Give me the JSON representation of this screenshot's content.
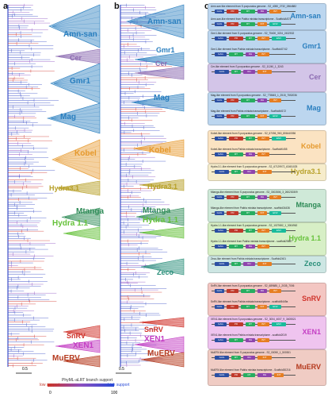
{
  "panels": {
    "a": "a",
    "b": "b",
    "c": "c"
  },
  "clades_a": [
    {
      "key": "amn",
      "label": "Amn-san",
      "color": "#2a7fbf"
    },
    {
      "key": "cer",
      "label": "Cer",
      "color": "#8c6bb1"
    },
    {
      "key": "gmr1",
      "label": "Gmr1",
      "color": "#2a7fbf"
    },
    {
      "key": "mag",
      "label": "Mag",
      "color": "#2a7fbf"
    },
    {
      "key": "kobel",
      "label": "Kobel",
      "color": "#e69a2e"
    },
    {
      "key": "hydra31",
      "label": "Hydra3.1",
      "color": "#b8a12a"
    },
    {
      "key": "mtanga",
      "label": "Mtanga",
      "color": "#2e8b57"
    },
    {
      "key": "hydra11",
      "label": "Hydra 1.1",
      "color": "#66c23a"
    },
    {
      "key": "snrv",
      "label": "SnRV",
      "color": "#d0342c"
    },
    {
      "key": "xen1",
      "label": "XEN1",
      "color": "#c43fc4"
    },
    {
      "key": "muerv",
      "label": "MuERV",
      "color": "#b5391d"
    }
  ],
  "clades_b": [
    {
      "key": "amn",
      "label": "Amn-san",
      "color": "#2a7fbf"
    },
    {
      "key": "gmr1",
      "label": "Gmr1",
      "color": "#2a7fbf"
    },
    {
      "key": "cer",
      "label": "Cer",
      "color": "#8c6bb1"
    },
    {
      "key": "mag",
      "label": "Mag",
      "color": "#2a7fbf"
    },
    {
      "key": "kobel",
      "label": "Kobel",
      "color": "#e69a2e"
    },
    {
      "key": "hydra31",
      "label": "Hydra3.1",
      "color": "#b8a12a"
    },
    {
      "key": "mtanga",
      "label": "Mtanga",
      "color": "#2e8b57"
    },
    {
      "key": "hydra11",
      "label": "Hydra 1.1",
      "color": "#66c23a"
    },
    {
      "key": "zeco",
      "label": "Zeco",
      "color": "#2a8f7a"
    },
    {
      "key": "snrv",
      "label": "SnRV",
      "color": "#d0342c"
    },
    {
      "key": "xen1",
      "label": "XEN1",
      "color": "#c43fc4"
    },
    {
      "key": "muerv",
      "label": "MuERV",
      "color": "#b5391d"
    }
  ],
  "boxes": [
    {
      "key": "amn",
      "label": "Amn-san",
      "color": "#bcd6ef",
      "label_color": "#2a7fbf",
      "lines": [
        "Amn-san like element from S.purpuratus genome - S2_4050_2732_2864882",
        "Amn-san-like element from Patiria miniata transcriptome - ScaffoldAS74"
      ]
    },
    {
      "key": "gmr1",
      "label": "Gmr1",
      "color": "#bcd6ef",
      "label_color": "#2a7fbf",
      "lines": [
        "Gmr1-like element from S.purpuratus genome - S2_75400_3224_2432532",
        "Gmr1-like element from Patiria miniata transcriptome - ScaffoldG742"
      ]
    },
    {
      "key": "cer",
      "label": "Cer",
      "color": "#d3c5e8",
      "label_color": "#8c6bb1",
      "lines": [
        "Cer-like element from S.purpuratus genome - S2_11240_1_3243"
      ]
    },
    {
      "key": "mag",
      "label": "Mag",
      "color": "#bcd6ef",
      "label_color": "#2a7fbf",
      "lines": [
        "Mag-like element from S.purpuratus genome - S2_778645_1_2515_7552036",
        "Mag-like element from Patiria miniata transcriptome - ScaffoldM172"
      ]
    },
    {
      "key": "kobel",
      "label": "Kobel",
      "color": "#fbe3c2",
      "label_color": "#e69a2e",
      "lines": [
        "Kobel-like element from S.purpuratus genome - S2_67056_960_806440056",
        "Kobel-like element from Patiria miniata transcriptome - ScaffoldK455"
      ]
    },
    {
      "key": "hydra31",
      "label": "Hydra3.1",
      "color": "#f6eccb",
      "label_color": "#b8a12a",
      "lines": [
        "Hydra 3.1-like element from S.purpuratus genome - S2_67129972_63451025"
      ]
    },
    {
      "key": "mtanga",
      "label": "Mtanga",
      "color": "#cfe9d8",
      "label_color": "#2e8b57",
      "lines": [
        "Mtanga-like element from S.purpuratus genome - S2_3002806_3_260230309",
        "Mtanga-like element from Patiria miniata transcriptome - scaffold34436"
      ]
    },
    {
      "key": "hydra11",
      "label": "Hydra 1.1",
      "color": "#d7efc6",
      "label_color": "#66c23a",
      "lines": [
        "Hydra 1.1-like element from S.purpuratus genome - S2_1027682_1_3004962",
        "Hydra 1.1-like element from Patiria miniata transcriptome - scaffold25857"
      ]
    },
    {
      "key": "zeco",
      "label": "Zeco",
      "color": "#cde6e3",
      "label_color": "#2a8f7a",
      "lines": [
        "Zeco-like element from Patiria miniata transcriptome - Scaffold2401"
      ]
    },
    {
      "key": "snrv",
      "label": "SnRV",
      "color": "#f3c6c2",
      "label_color": "#d0342c",
      "lines": [
        "SnRV-like element from S.purpuratus genome - S2_689685_1_2035_7006",
        "SnRV-like element from Patiria miniata transcriptome - scaffold5449a"
      ]
    },
    {
      "key": "xen1",
      "label": "XEN1",
      "color": "#efc4ef",
      "label_color": "#c43fc4",
      "lines": [
        "XEN1-like element from S.purpuratus genome - S2_3004_4007_9_3405521",
        "XEN1-like element from Patiria miniata transcriptome - scaffold2019"
      ]
    },
    {
      "key": "muerv",
      "label": "MuERV",
      "color": "#f0ccc4",
      "label_color": "#b5391d",
      "lines": [
        "MuERV-like element from S.purpuratus genome - S2_00050_1_500301",
        "MuERV-like element from Patiria miniata transcriptome - Scaffold30216"
      ]
    }
  ],
  "gene_labels": [
    "GAG",
    "PR",
    "RT",
    "RH",
    "INT",
    "ENV"
  ],
  "gene_colors": {
    "GAG": "#2b4fa3",
    "PR": "#c0392b",
    "RT": "#27ae60",
    "RH": "#8e44ad",
    "INT": "#e67e22",
    "ENV": "#1abc9c"
  },
  "legend": {
    "low": "low support",
    "mid": "PhyML-aLRT branch support",
    "high": "high support",
    "min": "0",
    "max": "100"
  },
  "scale": {
    "a": "0.5",
    "b": "0.5"
  }
}
